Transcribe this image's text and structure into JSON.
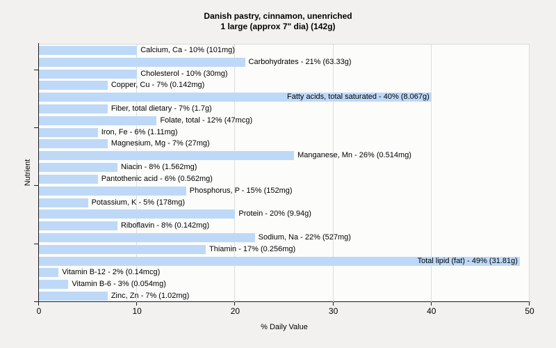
{
  "title": {
    "line1": "Danish pastry, cinnamon, unenriched",
    "line2": "1 large (approx 7\" dia) (142g)"
  },
  "axes": {
    "x_label": "% Daily Value",
    "y_label": "Nutrient"
  },
  "colors": {
    "bar_fill": "#bed9f8",
    "page_background": "#f2f1ef",
    "plot_background": "#fcfcfb",
    "gridline": "#dcdcdc",
    "axis": "#1a1a1a"
  },
  "chart_data": {
    "type": "bar",
    "orientation": "horizontal",
    "title": "Danish pastry, cinnamon, unenriched",
    "subtitle": "1 large (approx 7\" dia) (142g)",
    "xlabel": "% Daily Value",
    "ylabel": "Nutrient",
    "xlim": [
      0,
      50
    ],
    "x_ticks": [
      "0",
      "10",
      "20",
      "30",
      "40",
      "50"
    ],
    "grid": "vertical-only",
    "legend": "none",
    "nutrients": [
      {
        "name": "Calcium, Ca",
        "pct": 10,
        "amount": "101mg"
      },
      {
        "name": "Carbohydrates",
        "pct": 21,
        "amount": "63.33g"
      },
      {
        "name": "Cholesterol",
        "pct": 10,
        "amount": "30mg"
      },
      {
        "name": "Copper, Cu",
        "pct": 7,
        "amount": "0.142mg"
      },
      {
        "name": "Fatty acids, total saturated",
        "pct": 40,
        "amount": "8.067g"
      },
      {
        "name": "Fiber, total dietary",
        "pct": 7,
        "amount": "1.7g"
      },
      {
        "name": "Folate, total",
        "pct": 12,
        "amount": "47mcg"
      },
      {
        "name": "Iron, Fe",
        "pct": 6,
        "amount": "1.11mg"
      },
      {
        "name": "Magnesium, Mg",
        "pct": 7,
        "amount": "27mg"
      },
      {
        "name": "Manganese, Mn",
        "pct": 26,
        "amount": "0.514mg"
      },
      {
        "name": "Niacin",
        "pct": 8,
        "amount": "1.562mg"
      },
      {
        "name": "Pantothenic acid",
        "pct": 6,
        "amount": "0.562mg"
      },
      {
        "name": "Phosphorus, P",
        "pct": 15,
        "amount": "152mg"
      },
      {
        "name": "Potassium, K",
        "pct": 5,
        "amount": "178mg"
      },
      {
        "name": "Protein",
        "pct": 20,
        "amount": "9.94g"
      },
      {
        "name": "Riboflavin",
        "pct": 8,
        "amount": "0.142mg"
      },
      {
        "name": "Sodium, Na",
        "pct": 22,
        "amount": "527mg"
      },
      {
        "name": "Thiamin",
        "pct": 17,
        "amount": "0.256mg"
      },
      {
        "name": "Total lipid (fat)",
        "pct": 49,
        "amount": "31.81g"
      },
      {
        "name": "Vitamin B-12",
        "pct": 2,
        "amount": "0.14mcg"
      },
      {
        "name": "Vitamin B-6",
        "pct": 3,
        "amount": "0.054mg"
      },
      {
        "name": "Zinc, Zn",
        "pct": 7,
        "amount": "1.02mg"
      }
    ]
  }
}
